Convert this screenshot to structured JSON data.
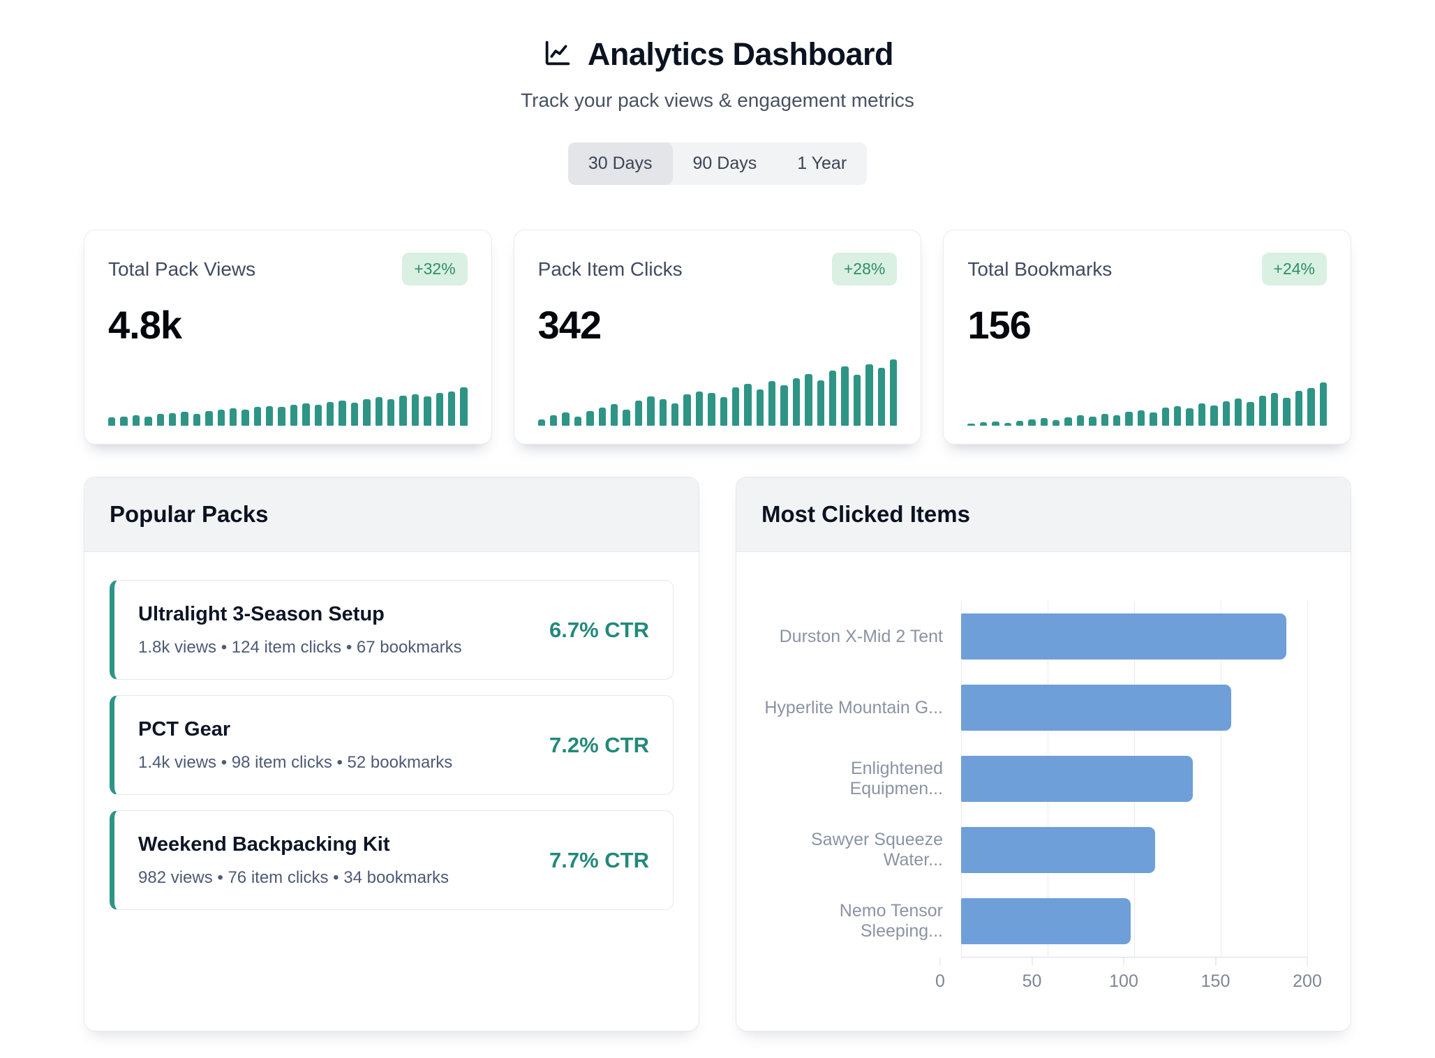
{
  "header": {
    "title": "Analytics Dashboard",
    "subtitle": "Track your pack views & engagement metrics",
    "icon": "line-chart-icon"
  },
  "time_toggle": {
    "options": [
      "30 Days",
      "90 Days",
      "1 Year"
    ],
    "active": "30 Days"
  },
  "stat_cards": [
    {
      "label": "Total Pack Views",
      "badge": "+32%",
      "value": "4.8k",
      "spark_type": "bar",
      "spark": [
        13,
        14,
        16,
        14,
        18,
        19,
        21,
        18,
        22,
        24,
        26,
        24,
        28,
        30,
        28,
        32,
        34,
        32,
        36,
        38,
        35,
        40,
        43,
        40,
        45,
        47,
        44,
        50,
        52,
        58
      ]
    },
    {
      "label": "Pack Item Clicks",
      "badge": "+28%",
      "value": "342",
      "spark_type": "bar",
      "spark": [
        10,
        16,
        20,
        14,
        22,
        27,
        33,
        24,
        38,
        44,
        40,
        34,
        47,
        52,
        49,
        43,
        58,
        63,
        55,
        67,
        61,
        72,
        78,
        68,
        83,
        89,
        77,
        93,
        87,
        100
      ]
    },
    {
      "label": "Total Bookmarks",
      "badge": "+24%",
      "value": "156",
      "spark_type": "bar",
      "spark": [
        3,
        5,
        6,
        4,
        7,
        9,
        12,
        8,
        13,
        16,
        14,
        18,
        16,
        21,
        23,
        20,
        27,
        30,
        26,
        34,
        31,
        37,
        41,
        36,
        45,
        49,
        42,
        53,
        57,
        65
      ]
    }
  ],
  "popular_packs": {
    "title": "Popular Packs",
    "items": [
      {
        "name": "Ultralight 3-Season Setup",
        "meta": "1.8k views • 124 item clicks • 67 bookmarks",
        "ctr": "6.7% CTR"
      },
      {
        "name": "PCT Gear",
        "meta": "1.4k views • 98 item clicks • 52 bookmarks",
        "ctr": "7.2% CTR"
      },
      {
        "name": "Weekend Backpacking Kit",
        "meta": "982 views • 76 item clicks • 34 bookmarks",
        "ctr": "7.7% CTR"
      }
    ]
  },
  "most_clicked": {
    "title": "Most Clicked Items",
    "chart_data": {
      "type": "bar",
      "orientation": "horizontal",
      "categories": [
        "Durston X-Mid 2 Tent",
        "Hyperlite Mountain G...",
        "Enlightened Equipmen...",
        "Sawyer Squeeze Water...",
        "Nemo Tensor Sleeping..."
      ],
      "values": [
        188,
        156,
        134,
        112,
        98
      ],
      "xlim": [
        0,
        200
      ],
      "xticks": [
        0,
        50,
        100,
        150,
        200
      ],
      "grid": true,
      "legend": false
    }
  },
  "colors": {
    "spark_teal": "#2e9486",
    "bar_blue": "#6f9fd9",
    "badge_bg": "#d9f0e2",
    "badge_text": "#2e8f63",
    "ctr_text": "#23897a"
  }
}
